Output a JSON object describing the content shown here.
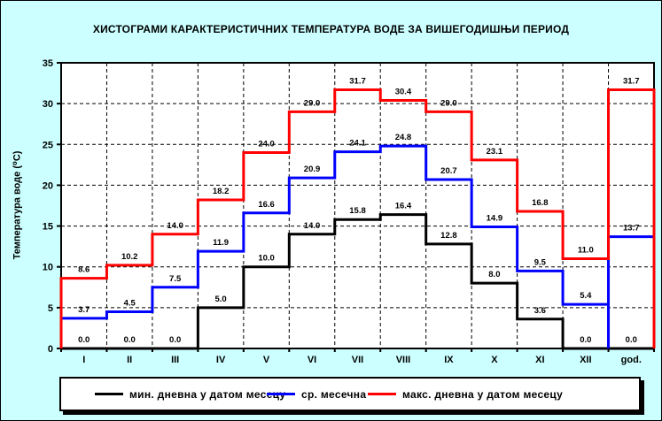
{
  "title": "ХИСТОГРАМИ КАРАКТЕРИСТИЧНИХ ТЕМПЕРАТУРА ВОДЕ ЗА ВИШЕГОДИШЊИ ПЕРИОД",
  "colors": {
    "background": "#CCFFFF",
    "plot_background": "#FFFFFF",
    "axis": "#000000"
  },
  "chart_data": {
    "type": "step-line",
    "title": "ХИСТОГРАМИ КАРАКТЕРИСТИЧНИХ ТЕМПЕРАТУРА ВОДЕ ЗА ВИШЕГОДИШЊИ ПЕРИОД",
    "ylabel": "Температура воде (⁰C)",
    "xlabel": "",
    "ylim": [
      0,
      35
    ],
    "ytick_step": 5,
    "grid": "dashed",
    "legend_position": "bottom",
    "categories": [
      "I",
      "II",
      "III",
      "IV",
      "V",
      "VI",
      "VII",
      "VIII",
      "IX",
      "X",
      "XI",
      "XII",
      "god."
    ],
    "series": [
      {
        "key": "min-daily",
        "name": "мин. дневна у датом месецу",
        "color": "#000000",
        "values": [
          0.0,
          0.0,
          0.0,
          5.0,
          10.0,
          14.0,
          15.8,
          16.4,
          12.8,
          8.0,
          3.6,
          0.0,
          0.0
        ]
      },
      {
        "key": "monthly-mean",
        "name": "ср. месечна",
        "color": "#0000FF",
        "reset_before_index": 12,
        "values": [
          3.7,
          4.5,
          7.5,
          11.9,
          16.6,
          20.9,
          24.1,
          24.8,
          20.7,
          14.9,
          9.5,
          5.4,
          13.7
        ]
      },
      {
        "key": "max-daily",
        "name": "макс. дневна у датом месецу",
        "color": "#FF0000",
        "values": [
          8.6,
          10.2,
          14.0,
          18.2,
          24.0,
          29.0,
          31.7,
          30.4,
          29.0,
          23.1,
          16.8,
          11.0,
          31.7
        ]
      }
    ]
  }
}
